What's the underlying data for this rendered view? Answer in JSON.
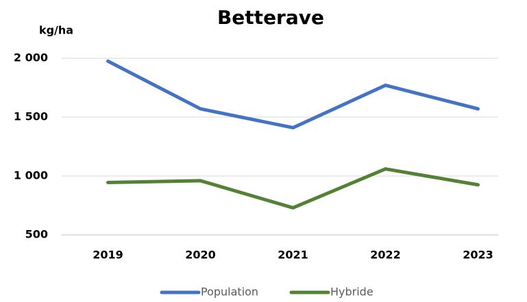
{
  "chart_data": {
    "type": "line",
    "title": "Betterave",
    "y_label": "kg/ha",
    "categories": [
      "2019",
      "2020",
      "2021",
      "2022",
      "2023"
    ],
    "series": [
      {
        "name": "Population",
        "color": "#4472c4",
        "values": [
          1975,
          1570,
          1410,
          1770,
          1570
        ]
      },
      {
        "name": "Hybride",
        "color": "#548235",
        "values": [
          945,
          960,
          730,
          1060,
          925
        ]
      }
    ],
    "ylim": [
      500,
      2000
    ],
    "yticks": [
      500,
      {
        "value": 1000,
        "label": "1 000"
      },
      {
        "value": 1500,
        "label": "1 500"
      },
      {
        "value": 2000,
        "label": "2 000"
      }
    ],
    "grid": true,
    "legend": "bottom"
  }
}
